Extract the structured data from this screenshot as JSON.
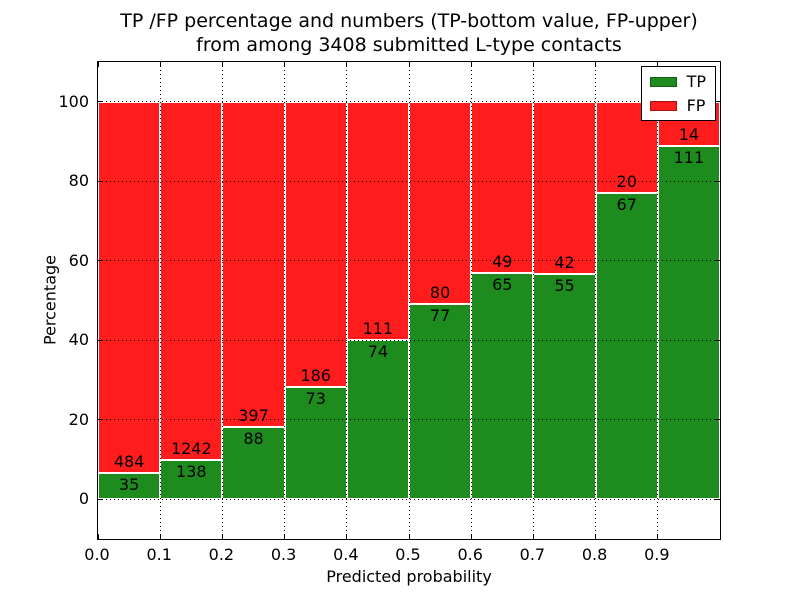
{
  "chart_data": {
    "type": "bar",
    "stacked": true,
    "percent_normalized": true,
    "title_line1": "TP /FP percentage and numbers (TP-bottom value, FP-upper)",
    "title_line2": "from among 3408 submitted L-type contacts",
    "total_contacts": 3408,
    "xlabel": "Predicted probability",
    "ylabel": "Percentage",
    "xlim": [
      0.0,
      1.0
    ],
    "ylim": [
      -10,
      110
    ],
    "bin_width": 0.1,
    "bin_starts": [
      0.0,
      0.1,
      0.2,
      0.3,
      0.4,
      0.5,
      0.6,
      0.7,
      0.8,
      0.9
    ],
    "series": [
      {
        "name": "TP",
        "color": "#1e8b1e",
        "values": [
          35,
          138,
          88,
          73,
          74,
          77,
          65,
          55,
          67,
          111
        ]
      },
      {
        "name": "FP",
        "color": "#ff1c1c",
        "values": [
          484,
          1242,
          397,
          186,
          111,
          80,
          49,
          42,
          20,
          14
        ]
      }
    ],
    "tp_percent": [
      6.7,
      10.0,
      18.1,
      28.2,
      40.0,
      49.0,
      57.0,
      56.7,
      77.0,
      88.8
    ],
    "xticks": {
      "values": [
        0.0,
        0.1,
        0.2,
        0.3,
        0.4,
        0.5,
        0.6,
        0.7,
        0.8,
        0.9
      ],
      "labels": [
        "0.0",
        "0.1",
        "0.2",
        "0.3",
        "0.4",
        "0.5",
        "0.6",
        "0.7",
        "0.8",
        "0.9"
      ]
    },
    "yticks": {
      "values": [
        0,
        20,
        40,
        60,
        80,
        100
      ],
      "labels": [
        "0",
        "20",
        "40",
        "60",
        "80",
        "100"
      ]
    },
    "grid": {
      "visible": true,
      "linestyle": "dotted",
      "color": "#000000"
    },
    "bar_edge_color": "#ffffff",
    "legend": {
      "position": "upper right",
      "entries": [
        {
          "label": "TP",
          "color": "#1e8b1e"
        },
        {
          "label": "FP",
          "color": "#ff1c1c"
        }
      ]
    },
    "background": "#ffffff",
    "text_color": "#000000"
  }
}
